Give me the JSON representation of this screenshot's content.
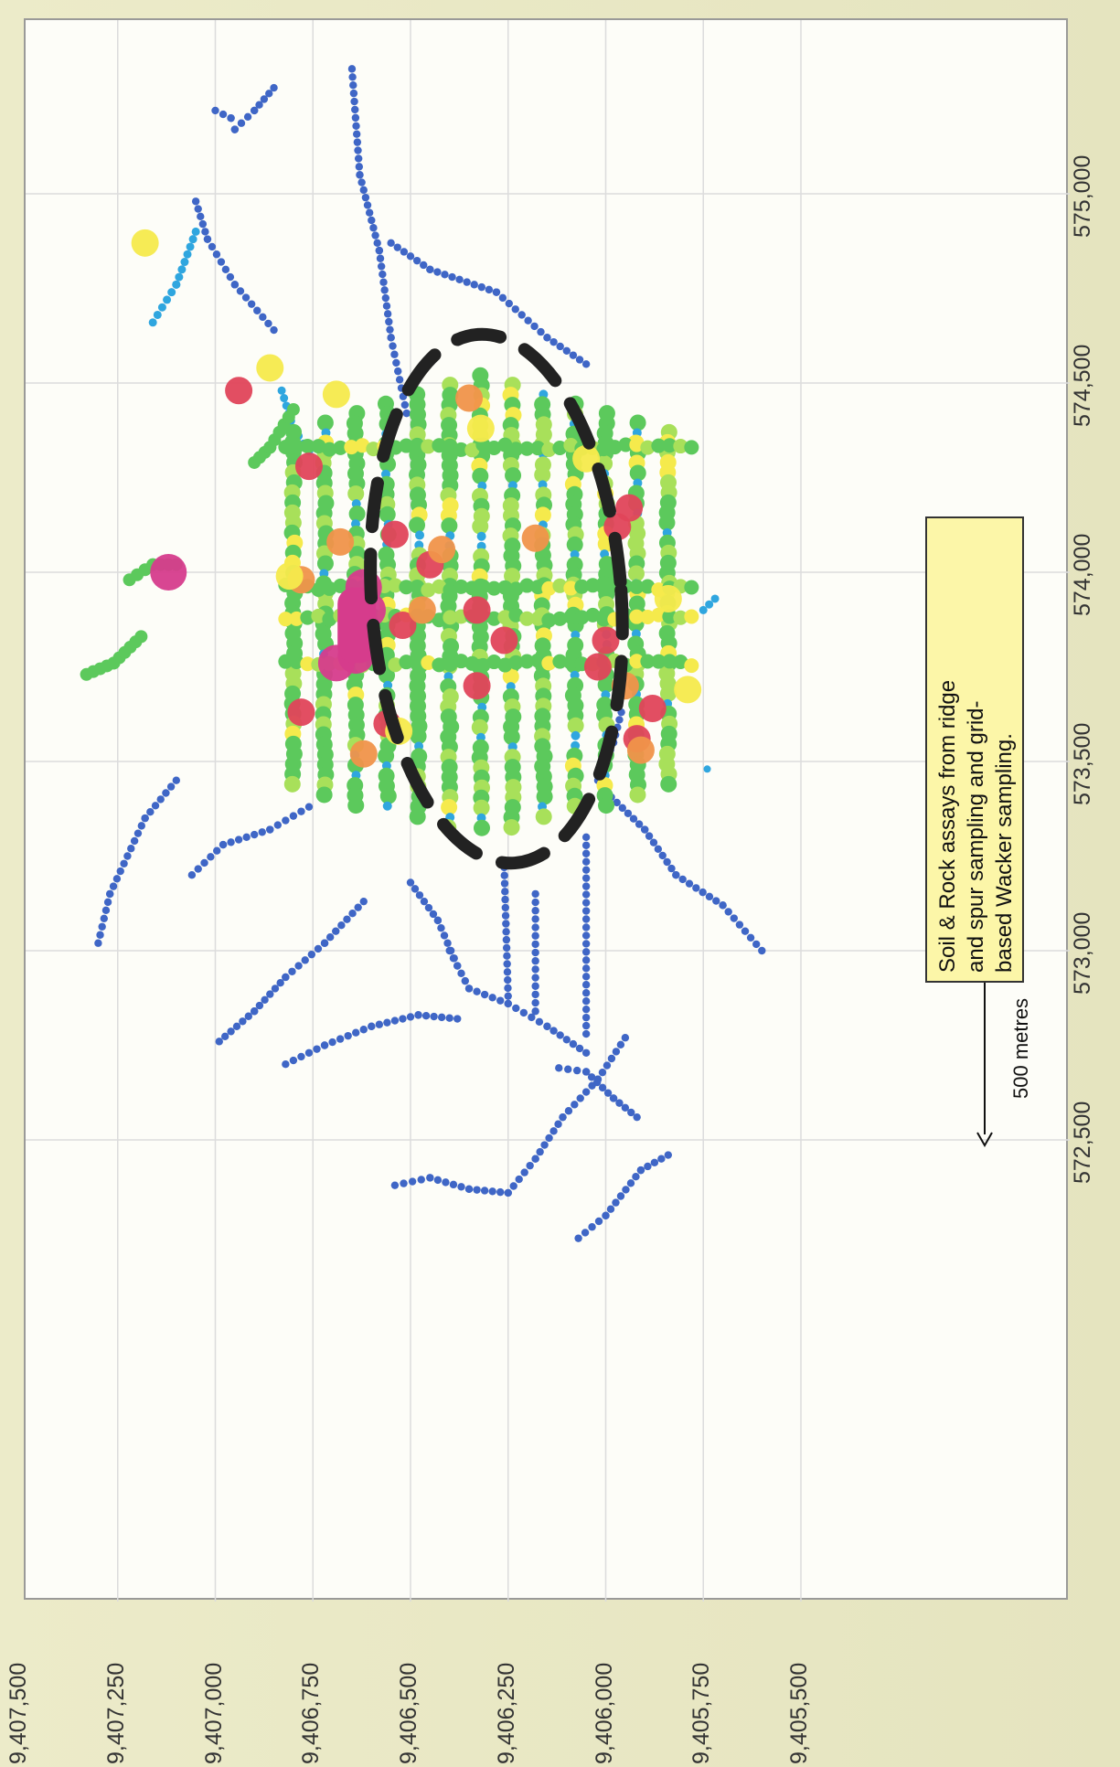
{
  "chart_data": {
    "type": "scatter",
    "title": "",
    "orientation": "rotated-90-ccw",
    "x_axis": {
      "label": "",
      "ticks": [
        "9,407,500",
        "9,407,250",
        "9,407,000",
        "9,406,750",
        "9,406,500",
        "9,406,250",
        "9,406,000",
        "9,405,750",
        "9,405,500"
      ],
      "range": [
        9407500,
        9405400
      ]
    },
    "y_axis": {
      "label": "",
      "ticks": [
        "572,500",
        "573,000",
        "573,500",
        "574,000",
        "574,500",
        "575,000"
      ],
      "range": [
        572250,
        575400
      ]
    },
    "grid": true,
    "annotation": {
      "lines": [
        "Soil & Rock assays from ridge",
        "and spur sampling and grid-",
        "based Wacker sampling."
      ]
    },
    "scale_bar": {
      "label": "500 metres",
      "length_m": 500
    },
    "target_outline": {
      "style": "dashed ellipse",
      "center": [
        9406280,
        573930
      ],
      "semi_axis_easting": 700,
      "semi_axis_northing": 320
    },
    "value_colors": {
      "very_low": "#3f66c6",
      "low": "#2fa6df",
      "moderate": "#5cc95c",
      "elevated": "#a8e05a",
      "high": "#f5ea4c",
      "very_high": "#f0934a",
      "anomalous": "#e0455a",
      "peak": "#d63c8c"
    },
    "series": [
      {
        "class": "very_low",
        "lines": [
          {
            "path": [
              [
                9406650,
                575330
              ],
              [
                9406630,
                575050
              ],
              [
                9406580,
                574850
              ],
              [
                9406550,
                574620
              ],
              [
                9406510,
                574420
              ]
            ]
          },
          {
            "path": [
              [
                9406550,
                574870
              ],
              [
                9406450,
                574800
              ],
              [
                9406280,
                574740
              ],
              [
                9406150,
                574620
              ],
              [
                9406050,
                574550
              ]
            ]
          },
          {
            "path": [
              [
                9407000,
                575220
              ],
              [
                9406960,
                575200
              ],
              [
                9406950,
                575170
              ],
              [
                9406900,
                575220
              ],
              [
                9406850,
                575280
              ]
            ]
          },
          {
            "path": [
              [
                9407050,
                574980
              ],
              [
                9407020,
                574880
              ],
              [
                9406950,
                574760
              ],
              [
                9406850,
                574640
              ]
            ]
          },
          {
            "path": [
              [
                9407300,
                573020
              ],
              [
                9407270,
                573150
              ],
              [
                9407180,
                573350
              ],
              [
                9407100,
                573450
              ]
            ]
          },
          {
            "path": [
              [
                9407060,
                573200
              ],
              [
                9406980,
                573280
              ],
              [
                9406860,
                573320
              ],
              [
                9406760,
                573380
              ]
            ]
          },
          {
            "path": [
              [
                9406990,
                572760
              ],
              [
                9406900,
                572840
              ],
              [
                9406820,
                572930
              ],
              [
                9406720,
                573020
              ],
              [
                9406620,
                573130
              ]
            ]
          },
          {
            "path": [
              [
                9406820,
                572700
              ],
              [
                9406720,
                572750
              ],
              [
                9406600,
                572800
              ],
              [
                9406480,
                572830
              ],
              [
                9406380,
                572820
              ]
            ]
          },
          {
            "path": [
              [
                9406540,
                572380
              ],
              [
                9406450,
                572400
              ],
              [
                9406350,
                572370
              ],
              [
                9406250,
                572360
              ],
              [
                9406180,
                572450
              ],
              [
                9406110,
                572560
              ],
              [
                9406020,
                572660
              ],
              [
                9405950,
                572770
              ]
            ]
          },
          {
            "path": [
              [
                9406070,
                572240
              ],
              [
                9406000,
                572300
              ],
              [
                9405910,
                572420
              ],
              [
                9405840,
                572460
              ]
            ]
          },
          {
            "path": [
              [
                9406120,
                572690
              ],
              [
                9406050,
                572680
              ],
              [
                9405980,
                572610
              ],
              [
                9405920,
                572560
              ]
            ]
          },
          {
            "path": [
              [
                9406000,
                573420
              ],
              [
                9405900,
                573320
              ],
              [
                9405820,
                573200
              ],
              [
                9405700,
                573120
              ],
              [
                9405600,
                573000
              ]
            ]
          },
          {
            "path": [
              [
                9406020,
                573450
              ],
              [
                9405980,
                573550
              ],
              [
                9405960,
                573630
              ]
            ]
          },
          {
            "path": [
              [
                9406400,
                573000
              ],
              [
                9406350,
                572900
              ],
              [
                9406250,
                572860
              ],
              [
                9406150,
                572800
              ],
              [
                9406050,
                572730
              ]
            ]
          },
          {
            "path": [
              [
                9406500,
                573180
              ],
              [
                9406430,
                573080
              ],
              [
                9406380,
                572960
              ]
            ]
          },
          {
            "path": [
              [
                9406260,
                573220
              ],
              [
                9406250,
                572880
              ]
            ]
          },
          {
            "path": [
              [
                9406180,
                573150
              ],
              [
                9406180,
                572840
              ]
            ]
          },
          {
            "path": [
              [
                9406050,
                573300
              ],
              [
                9406050,
                572780
              ]
            ]
          }
        ]
      },
      {
        "class": "low",
        "lines": [
          {
            "path": [
              [
                9407160,
                574660
              ],
              [
                9407100,
                574760
              ],
              [
                9407050,
                574900
              ]
            ]
          },
          {
            "path": [
              [
                9406830,
                574480
              ],
              [
                9406800,
                574380
              ],
              [
                9406760,
                574320
              ]
            ]
          },
          {
            "path": [
              [
                9405750,
                573900
              ],
              [
                9405720,
                573930
              ]
            ]
          },
          {
            "path": [
              [
                9405740,
                573480
              ]
            ]
          }
        ]
      },
      {
        "class": "moderate",
        "lines": [
          {
            "path": [
              [
                9407220,
                573980
              ],
              [
                9407160,
                574020
              ],
              [
                9407100,
                574020
              ]
            ]
          },
          {
            "path": [
              [
                9407330,
                573730
              ],
              [
                9407260,
                573760
              ],
              [
                9407190,
                573830
              ]
            ]
          },
          {
            "path": [
              [
                9406900,
                574290
              ],
              [
                9406860,
                574330
              ],
              [
                9406800,
                574430
              ]
            ]
          }
        ]
      },
      {
        "class": "peak",
        "points": [
          [
            9407120,
            574000
          ],
          [
            9406620,
            573960
          ],
          [
            9406610,
            573900
          ],
          [
            9406630,
            573860
          ],
          [
            9406640,
            573780
          ],
          [
            9406690,
            573760
          ]
        ]
      },
      {
        "class": "anomalous",
        "points": [
          [
            9406940,
            574480
          ],
          [
            9406760,
            574280
          ],
          [
            9406540,
            574100
          ],
          [
            9406450,
            574020
          ],
          [
            9406330,
            573900
          ],
          [
            9406260,
            573820
          ],
          [
            9406020,
            573750
          ],
          [
            9406000,
            573820
          ],
          [
            9405880,
            573640
          ],
          [
            9405920,
            573560
          ],
          [
            9405940,
            574170
          ],
          [
            9405970,
            574120
          ],
          [
            9406330,
            573700
          ],
          [
            9406520,
            573860
          ],
          [
            9406780,
            573630
          ],
          [
            9406560,
            573600
          ]
        ]
      },
      {
        "class": "very_high",
        "points": [
          [
            9406780,
            573980
          ],
          [
            9406680,
            574080
          ],
          [
            9406420,
            574060
          ],
          [
            9406180,
            574090
          ],
          [
            9405910,
            573530
          ],
          [
            9406620,
            573520
          ],
          [
            9406470,
            573900
          ],
          [
            9405950,
            573700
          ],
          [
            9406350,
            574460
          ]
        ]
      },
      {
        "class": "high",
        "points": [
          [
            9406860,
            574540
          ],
          [
            9406690,
            574470
          ],
          [
            9406320,
            574380
          ],
          [
            9406050,
            574300
          ],
          [
            9405790,
            573690
          ],
          [
            9405840,
            573930
          ],
          [
            9407180,
            574870
          ],
          [
            9406810,
            573990
          ],
          [
            9406530,
            573580
          ]
        ]
      }
    ]
  }
}
